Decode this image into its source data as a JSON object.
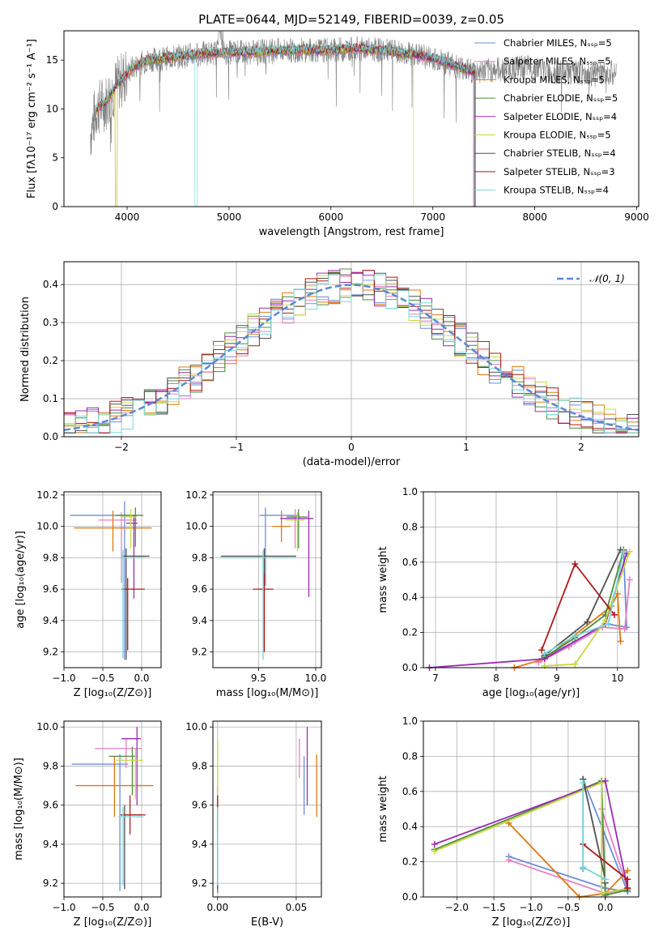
{
  "figure": {
    "title": "PLATE=0644, MJD=52149, FIBERID=0039, z=0.05",
    "model_colors": [
      "#6a8fd8",
      "#e880c0",
      "#e07810",
      "#4e8c3c",
      "#9a2cb0",
      "#c8d840",
      "#505050",
      "#b01818",
      "#78d8d8"
    ]
  },
  "chart_data": [
    {
      "id": "spectrum",
      "type": "line",
      "title": "PLATE=0644, MJD=52149, FIBERID=0039, z=0.05",
      "xlabel": "wavelength [Angstrom, rest frame]",
      "ylabel": "Flux [fλ10⁻¹⁷ erg cm⁻² s⁻¹ A⁻¹]",
      "xlim": [
        3380,
        9020
      ],
      "ylim": [
        0,
        18
      ],
      "xticks": [
        4000,
        5000,
        6000,
        7000,
        8000,
        9000
      ],
      "yticks": [
        0,
        5,
        10,
        15
      ],
      "grid": false,
      "legend_position": "upper right",
      "legend": [
        "Chabrier MILES, Nₛₛₚ=5",
        "Salpeter MILES, Nₛₛₚ=5",
        "Kroupa MILES, Nₛₛₚ=5",
        "Chabrier ELODIE, Nₛₛₚ=5",
        "Salpeter ELODIE, Nₛₛₚ=4",
        "Kroupa ELODIE, Nₛₛₚ=5",
        "Chabrier STELIB, Nₛₛₚ=4",
        "Salpeter STELIB, Nₛₛₚ=3",
        "Kroupa STELIB, Nₛₛₚ=4"
      ],
      "continuum": {
        "x": [
          3640,
          3700,
          3800,
          3900,
          3950,
          4050,
          4200,
          4400,
          4600,
          4800,
          5000,
          5200,
          5500,
          5800,
          6000,
          6200,
          6500,
          6800,
          7000,
          7200,
          7400,
          7600,
          7800,
          8000,
          8200,
          8400,
          8600,
          8800
        ],
        "y": [
          7.5,
          10.0,
          10.8,
          12.5,
          13.0,
          14.2,
          15.0,
          15.2,
          15.5,
          15.7,
          15.8,
          15.8,
          16.0,
          16.0,
          16.0,
          16.2,
          16.0,
          15.6,
          15.2,
          14.5,
          13.8,
          14.0,
          14.2,
          14.2,
          13.8,
          13.7,
          13.5,
          13.8
        ]
      },
      "model_ranges": [
        [
          3640,
          7420
        ],
        [
          3640,
          7400
        ],
        [
          3640,
          7420
        ],
        [
          3640,
          7410
        ],
        [
          3640,
          7400
        ],
        [
          3640,
          6810
        ],
        [
          3640,
          7410
        ],
        [
          3640,
          7420
        ],
        [
          3640,
          7420
        ]
      ]
    },
    {
      "id": "residual-histogram",
      "type": "histogram",
      "xlabel": "(data-model)/error",
      "ylabel": "Normed distribution",
      "xlim": [
        -2.5,
        2.5
      ],
      "ylim": [
        0,
        0.46
      ],
      "xticks": [
        -2,
        -1,
        0,
        1,
        2
      ],
      "yticks": [
        0.0,
        0.1,
        0.2,
        0.3,
        0.4
      ],
      "grid": true,
      "legend_position": "upper right",
      "reference_curve": "𝒩(0, 1)",
      "bin_width": 0.1
    },
    {
      "id": "age-vs-Z",
      "type": "errorbar",
      "xlabel": "Z [log₁₀(Z/Z⊙)]",
      "ylabel": "age  [log₁₀(age/yr)]",
      "xlim": [
        -1.0,
        0.25
      ],
      "ylim": [
        9.1,
        10.22
      ],
      "xticks": [
        -1.0,
        -0.5,
        0.0
      ],
      "yticks": [
        9.2,
        9.4,
        9.6,
        9.8,
        10.0,
        10.2
      ],
      "grid": true,
      "points": [
        {
          "x": -0.22,
          "xerr": [
            0.7,
            0.17
          ],
          "y": 10.07,
          "yerr": [
            0.92,
            0.09
          ]
        },
        {
          "x": -0.26,
          "xerr": [
            0.3,
            0.2
          ],
          "y": 10.04,
          "yerr": [
            0.4,
            0.05
          ]
        },
        {
          "x": -0.37,
          "xerr": [
            0.5,
            0.5
          ],
          "y": 9.99,
          "yerr": [
            0.15,
            0.11
          ]
        },
        {
          "x": -0.08,
          "xerr": [
            0.25,
            0.1
          ],
          "y": 10.07,
          "yerr": [
            0.2,
            0.05
          ]
        },
        {
          "x": -0.1,
          "xerr": [
            0.1,
            0.05
          ],
          "y": 10.02,
          "yerr": [
            0.48,
            0.05
          ]
        },
        {
          "x": -0.14,
          "xerr": [
            0.12,
            0.08
          ],
          "y": 10.06,
          "yerr": [
            0.2,
            0.05
          ]
        },
        {
          "x": -0.2,
          "xerr": [
            0.05,
            0.3
          ],
          "y": 9.81,
          "yerr": [
            0.66,
            0.05
          ]
        },
        {
          "x": -0.18,
          "xerr": [
            0.08,
            0.22
          ],
          "y": 9.6,
          "yerr": [
            0.39,
            0.07
          ]
        },
        {
          "x": -0.24,
          "xerr": [
            0.05,
            0.28
          ],
          "y": 9.8,
          "yerr": [
            0.64,
            0.05
          ]
        }
      ]
    },
    {
      "id": "age-vs-mass",
      "type": "errorbar",
      "xlabel": "mass [log₁₀(M/M⊙)]",
      "ylabel": "",
      "xlim": [
        9.1,
        10.05
      ],
      "ylim": [
        9.1,
        10.22
      ],
      "xticks": [
        9.5,
        10.0
      ],
      "yticks": [
        9.2,
        9.4,
        9.6,
        9.8,
        10.0,
        10.2
      ],
      "grid": true,
      "points": [
        {
          "x": 9.56,
          "xerr": [
            0.05,
            0.3
          ],
          "y": 10.07,
          "yerr": [
            0.45,
            0.05
          ]
        },
        {
          "x": 9.82,
          "xerr": [
            0.08,
            0.05
          ],
          "y": 10.06,
          "yerr": [
            0.2,
            0.05
          ]
        },
        {
          "x": 9.7,
          "xerr": [
            0.08,
            0.08
          ],
          "y": 10.0,
          "yerr": [
            0.1,
            0.1
          ]
        },
        {
          "x": 9.85,
          "xerr": [
            0.1,
            0.08
          ],
          "y": 10.06,
          "yerr": [
            0.2,
            0.05
          ]
        },
        {
          "x": 9.94,
          "xerr": [
            0.25,
            0.04
          ],
          "y": 10.05,
          "yerr": [
            0.5,
            0.05
          ]
        },
        {
          "x": 9.84,
          "xerr": [
            0.1,
            0.06
          ],
          "y": 10.04,
          "yerr": [
            0.2,
            0.05
          ]
        },
        {
          "x": 9.55,
          "xerr": [
            0.38,
            0.28
          ],
          "y": 9.81,
          "yerr": [
            0.6,
            0.05
          ]
        },
        {
          "x": 9.55,
          "xerr": [
            0.1,
            0.08
          ],
          "y": 9.6,
          "yerr": [
            0.4,
            0.1
          ]
        },
        {
          "x": 9.54,
          "xerr": [
            0.38,
            0.28
          ],
          "y": 9.8,
          "yerr": [
            0.65,
            0.05
          ]
        }
      ]
    },
    {
      "id": "mass-weight-vs-age",
      "type": "line",
      "xlabel": "age  [log₁₀(age/yr)]",
      "ylabel": "mass weight",
      "xlim": [
        6.8,
        10.35
      ],
      "ylim": [
        0,
        1.0
      ],
      "xticks": [
        7,
        8,
        9,
        10
      ],
      "yticks": [
        0.0,
        0.2,
        0.4,
        0.6,
        0.8,
        1.0
      ],
      "grid": true,
      "series": [
        {
          "x": [
            8.75,
            9.3,
            9.8,
            10.15,
            10.1
          ],
          "y": [
            0.05,
            0.15,
            0.25,
            0.23,
            0.67
          ]
        },
        {
          "x": [
            8.7,
            9.2,
            9.75,
            10.12,
            10.2
          ],
          "y": [
            0.03,
            0.12,
            0.23,
            0.22,
            0.5
          ]
        },
        {
          "x": [
            8.3,
            8.8,
            9.9,
            10.0,
            10.05
          ],
          "y": [
            0.0,
            0.05,
            0.35,
            0.42,
            0.15
          ]
        },
        {
          "x": [
            8.8,
            9.3,
            9.8,
            10.1
          ],
          "y": [
            0.06,
            0.17,
            0.3,
            0.67
          ]
        },
        {
          "x": [
            6.9,
            8.8,
            9.8,
            10.15
          ],
          "y": [
            0.0,
            0.05,
            0.25,
            0.65
          ]
        },
        {
          "x": [
            8.8,
            9.3,
            9.8,
            10.2
          ],
          "y": [
            0.01,
            0.02,
            0.27,
            0.66
          ]
        },
        {
          "x": [
            8.8,
            9.5,
            10.05
          ],
          "y": [
            0.07,
            0.26,
            0.67
          ]
        },
        {
          "x": [
            8.75,
            9.3,
            9.95
          ],
          "y": [
            0.1,
            0.59,
            0.3
          ]
        },
        {
          "x": [
            8.8,
            9.3,
            9.85,
            10.1
          ],
          "y": [
            0.08,
            0.18,
            0.25,
            0.66
          ]
        }
      ]
    },
    {
      "id": "mass-vs-Z",
      "type": "errorbar",
      "xlabel": "Z [log₁₀(Z/Z⊙)]",
      "ylabel": "mass [log₁₀(M/M⊙)]",
      "xlim": [
        -1.0,
        0.25
      ],
      "ylim": [
        9.13,
        10.03
      ],
      "xticks": [
        -1.0,
        -0.5,
        0.0
      ],
      "yticks": [
        9.2,
        9.4,
        9.6,
        9.8,
        10.0
      ],
      "grid": true,
      "points": [
        {
          "x": -0.28,
          "xerr": [
            0.62,
            0.1
          ],
          "y": 9.81,
          "yerr": [
            0.65,
            0.05
          ]
        },
        {
          "x": -0.2,
          "xerr": [
            0.4,
            0.2
          ],
          "y": 9.89,
          "yerr": [
            0.1,
            0.05
          ]
        },
        {
          "x": -0.35,
          "xerr": [
            0.5,
            0.5
          ],
          "y": 9.7,
          "yerr": [
            0.16,
            0.15
          ]
        },
        {
          "x": -0.12,
          "xerr": [
            0.3,
            0.05
          ],
          "y": 9.85,
          "yerr": [
            0.2,
            0.05
          ]
        },
        {
          "x": -0.06,
          "xerr": [
            0.2,
            0.05
          ],
          "y": 9.94,
          "yerr": [
            0.34,
            0.06
          ]
        },
        {
          "x": -0.08,
          "xerr": [
            0.25,
            0.1
          ],
          "y": 9.83,
          "yerr": [
            0.2,
            0.06
          ]
        },
        {
          "x": -0.22,
          "xerr": [
            0.05,
            0.22
          ],
          "y": 9.55,
          "yerr": [
            0.38,
            0.05
          ]
        },
        {
          "x": -0.15,
          "xerr": [
            0.12,
            0.2
          ],
          "y": 9.55,
          "yerr": [
            0.1,
            0.1
          ]
        },
        {
          "x": -0.24,
          "xerr": [
            0.06,
            0.26
          ],
          "y": 9.54,
          "yerr": [
            0.35,
            0.05
          ]
        }
      ]
    },
    {
      "id": "mass-vs-ebv",
      "type": "errorbar",
      "xlabel": "E(B-V)",
      "ylabel": "",
      "xlim": [
        -0.003,
        0.066
      ],
      "ylim": [
        9.13,
        10.03
      ],
      "xticks": [
        0.0,
        0.05
      ],
      "yticks": [
        9.2,
        9.4,
        9.6,
        9.8,
        10.0
      ],
      "grid": true,
      "points": [
        {
          "x": 0.055,
          "y": 9.7,
          "yerr": [
            0.15,
            0.15
          ]
        },
        {
          "x": 0.052,
          "y": 9.89,
          "yerr": [
            0.15,
            0.05
          ]
        },
        {
          "x": 0.063,
          "y": 9.7,
          "yerr": [
            0.16,
            0.16
          ]
        },
        {
          "x": 0.0,
          "y": 9.55,
          "yerr": [
            0.4,
            0.15
          ]
        },
        {
          "x": 0.057,
          "y": 9.94,
          "yerr": [
            0.34,
            0.06
          ]
        },
        {
          "x": 0.0,
          "y": 9.83,
          "yerr": [
            0.2,
            0.1
          ]
        },
        {
          "x": 0.0,
          "y": 9.55,
          "yerr": [
            0.38,
            0.05
          ]
        },
        {
          "x": 0.0,
          "y": 9.55,
          "yerr": [
            0.1,
            0.1
          ]
        },
        {
          "x": 0.0,
          "y": 9.54,
          "yerr": [
            0.35,
            0.05
          ]
        }
      ]
    },
    {
      "id": "mass-weight-vs-Z",
      "type": "line",
      "xlabel": "Z [log₁₀(Z/Z⊙)]",
      "ylabel": "mass weight",
      "xlim": [
        -2.45,
        0.45
      ],
      "ylim": [
        0,
        1.0
      ],
      "xticks": [
        -2.0,
        -1.5,
        -1.0,
        -0.5,
        0.0
      ],
      "yticks": [
        0.0,
        0.2,
        0.4,
        0.6,
        0.8,
        1.0
      ],
      "grid": true,
      "series": [
        {
          "x": [
            -1.3,
            0.0,
            0.3,
            -0.3,
            -0.3
          ],
          "y": [
            0.23,
            0.05,
            0.03,
            0.67,
            0.16
          ]
        },
        {
          "x": [
            -1.3,
            0.0,
            0.3,
            -0.05,
            0.0
          ],
          "y": [
            0.21,
            0.02,
            0.05,
            0.5,
            0.02
          ]
        },
        {
          "x": [
            -1.3,
            -0.35,
            0.0,
            0.3
          ],
          "y": [
            0.42,
            0.0,
            0.02,
            0.15
          ]
        },
        {
          "x": [
            -2.3,
            -0.05,
            0.0,
            0.3
          ],
          "y": [
            0.27,
            0.66,
            0.01,
            0.04
          ]
        },
        {
          "x": [
            -2.3,
            0.0,
            0.3
          ],
          "y": [
            0.3,
            0.66,
            0.05
          ]
        },
        {
          "x": [
            -2.3,
            -0.05,
            -0.05,
            0.3
          ],
          "y": [
            0.26,
            0.65,
            0.02,
            0.05
          ]
        },
        {
          "x": [
            -0.3,
            0.0,
            0.0
          ],
          "y": [
            0.67,
            0.1,
            0.08
          ]
        },
        {
          "x": [
            -0.3,
            0.3,
            0.3
          ],
          "y": [
            0.3,
            0.1,
            0.05
          ]
        },
        {
          "x": [
            -0.3,
            -0.3,
            0.0,
            0.0
          ],
          "y": [
            0.65,
            0.17,
            0.1,
            0.1
          ]
        }
      ]
    }
  ]
}
